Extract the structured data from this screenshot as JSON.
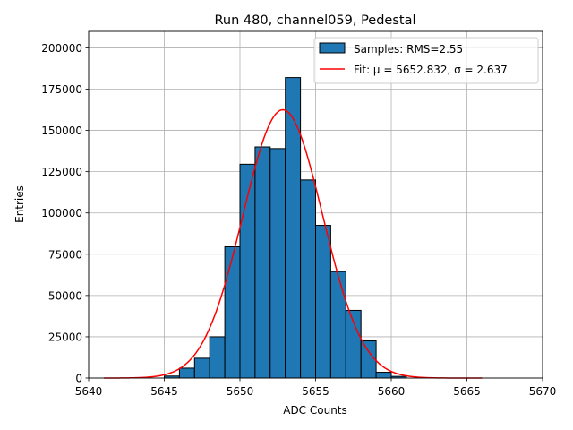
{
  "chart_data": {
    "type": "bar",
    "title": "Run 480, channel059, Pedestal",
    "xlabel": "ADC Counts",
    "ylabel": "Entries",
    "xlim": [
      5640,
      5670
    ],
    "ylim": [
      0,
      210000
    ],
    "xticks": [
      5640,
      5645,
      5650,
      5655,
      5660,
      5665,
      5670
    ],
    "yticks": [
      0,
      25000,
      50000,
      75000,
      100000,
      125000,
      150000,
      175000,
      200000
    ],
    "grid": true,
    "legend_position": "top-right",
    "bar_color": "#1f77b4",
    "fit_color": "#ff0000",
    "series": [
      {
        "name": "Samples: RMS=2.55",
        "type": "histogram",
        "bin_width": 1,
        "bin_starts": [
          5645,
          5646,
          5647,
          5648,
          5649,
          5650,
          5651,
          5652,
          5653,
          5654,
          5655,
          5656,
          5657,
          5658,
          5659,
          5660
        ],
        "values": [
          1200,
          6000,
          12000,
          25000,
          79500,
          129500,
          140000,
          139000,
          182000,
          120000,
          92500,
          64500,
          41000,
          22500,
          3500,
          1000
        ]
      },
      {
        "name": "Fit: μ = 5652.832, σ = 2.637",
        "type": "gaussian",
        "mu": 5652.832,
        "sigma": 2.637,
        "amplitude": 162500,
        "x_range": [
          5641,
          5666
        ]
      }
    ]
  }
}
